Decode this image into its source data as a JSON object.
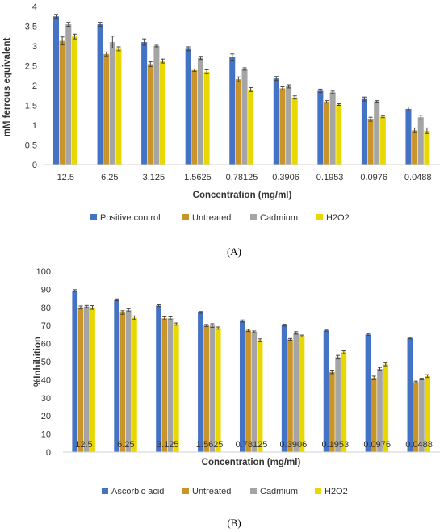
{
  "chart_data": [
    {
      "type": "bar",
      "panel_label": "(A)",
      "xlabel": "Concentration (mg/ml)",
      "ylabel": "mM ferrous equivalent",
      "ylim": [
        0,
        4
      ],
      "yticks": [
        0,
        0.5,
        1,
        1.5,
        2,
        2.5,
        3,
        3.5,
        4
      ],
      "ytick_labels": [
        "0",
        "0.5",
        "1",
        "1.5",
        "2",
        "2.5",
        "3",
        "3.5",
        "4"
      ],
      "grid": false,
      "legend_position": "bottom",
      "categories": [
        "12.5",
        "6.25",
        "3.125",
        "1.5625",
        "0.78125",
        "0.3906",
        "0.1953",
        "0.0976",
        "0.0488"
      ],
      "series": [
        {
          "name": "Positive control",
          "color": "#4472C4",
          "values": [
            3.75,
            3.55,
            3.1,
            2.93,
            2.72,
            2.18,
            1.87,
            1.66,
            1.41
          ],
          "errors": [
            0.05,
            0.05,
            0.08,
            0.05,
            0.08,
            0.05,
            0.04,
            0.05,
            0.05
          ]
        },
        {
          "name": "Untreated",
          "color": "#C9952A",
          "values": [
            3.13,
            2.8,
            2.54,
            2.39,
            2.16,
            1.93,
            1.59,
            1.15,
            0.87
          ],
          "errors": [
            0.1,
            0.05,
            0.06,
            0.03,
            0.06,
            0.04,
            0.03,
            0.05,
            0.06
          ]
        },
        {
          "name": "Cadmium",
          "color": "#A5A5A5",
          "values": [
            3.55,
            3.1,
            3.0,
            2.7,
            2.42,
            1.98,
            1.83,
            1.6,
            1.2
          ],
          "errors": [
            0.05,
            0.15,
            0.02,
            0.04,
            0.03,
            0.04,
            0.03,
            0.02,
            0.05
          ]
        },
        {
          "name": "H2O2",
          "color": "#E8D800",
          "values": [
            3.24,
            2.93,
            2.62,
            2.35,
            1.9,
            1.7,
            1.52,
            1.21,
            0.86
          ],
          "errors": [
            0.06,
            0.05,
            0.05,
            0.05,
            0.05,
            0.04,
            0.02,
            0.02,
            0.07
          ]
        }
      ]
    },
    {
      "type": "bar",
      "panel_label": "(B)",
      "xlabel": "Concentration (mg/ml)",
      "ylabel": "%Inhibition",
      "ylim": [
        0,
        100
      ],
      "yticks": [
        0,
        10,
        20,
        30,
        40,
        50,
        60,
        70,
        80,
        90,
        100
      ],
      "ytick_labels": [
        "0",
        "10",
        "20",
        "30",
        "40",
        "50",
        "60",
        "70",
        "80",
        "90",
        "100"
      ],
      "grid": false,
      "legend_position": "bottom",
      "categories": [
        "12.5",
        "6.25",
        "3.125",
        "1.5625",
        "0.78125",
        "0.3906",
        "0.1953",
        "0.0976",
        "0.0488"
      ],
      "series": [
        {
          "name": "Ascorbic acid",
          "color": "#4472C4",
          "values": [
            89.3,
            84.2,
            81.0,
            77.3,
            72.5,
            70.2,
            67.2,
            65.0,
            63.0
          ],
          "errors": [
            0.5,
            0.5,
            0.5,
            0.5,
            0.6,
            0.5,
            0.3,
            0.5,
            0.4
          ]
        },
        {
          "name": "Untreated",
          "color": "#C9952A",
          "values": [
            80.0,
            77.2,
            74.0,
            70.0,
            67.3,
            62.3,
            44.3,
            41.0,
            38.7
          ],
          "errors": [
            0.8,
            1.0,
            0.8,
            0.6,
            0.6,
            0.5,
            1.0,
            1.0,
            0.5
          ]
        },
        {
          "name": "Cadmium",
          "color": "#A5A5A5",
          "values": [
            80.5,
            78.5,
            74.0,
            70.0,
            66.5,
            65.9,
            52.5,
            46.0,
            40.4
          ],
          "errors": [
            0.6,
            0.8,
            0.8,
            1.0,
            0.5,
            0.7,
            1.0,
            0.8,
            0.4
          ]
        },
        {
          "name": "H2O2",
          "color": "#E8D800",
          "values": [
            80.0,
            74.3,
            70.8,
            68.6,
            61.8,
            64.2,
            55.2,
            48.5,
            42.0
          ],
          "errors": [
            1.0,
            1.0,
            0.6,
            0.6,
            0.8,
            0.5,
            0.8,
            0.8,
            0.8
          ]
        }
      ]
    }
  ]
}
